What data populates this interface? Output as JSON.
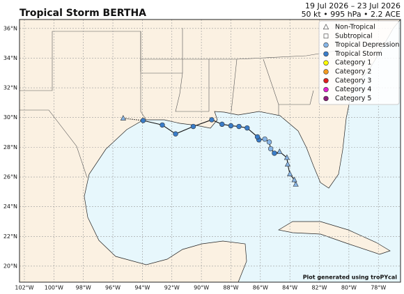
{
  "chart_data": {
    "type": "track",
    "title": "Tropical Storm BERTHA",
    "subtitle_lines": [
      "19 Jul 2026 – 23 Jul 2026",
      "50 kt • 995 hPa • 2.2 ACE"
    ],
    "credit": "Plot generated using troPYcal",
    "xlim": [
      -102.33,
      -76.5
    ],
    "ylim": [
      18.92,
      36.6
    ],
    "xticks": [
      {
        "value": -102,
        "label": "102°W"
      },
      {
        "value": -100,
        "label": "100°W"
      },
      {
        "value": -98,
        "label": "98°W"
      },
      {
        "value": -96,
        "label": "96°W"
      },
      {
        "value": -94,
        "label": "94°W"
      },
      {
        "value": -92,
        "label": "92°W"
      },
      {
        "value": -90,
        "label": "90°W"
      },
      {
        "value": -88,
        "label": "88°W"
      },
      {
        "value": -86,
        "label": "86°W"
      },
      {
        "value": -84,
        "label": "84°W"
      },
      {
        "value": -82,
        "label": "82°W"
      },
      {
        "value": -80,
        "label": "80°W"
      },
      {
        "value": -78,
        "label": "78°W"
      }
    ],
    "yticks": [
      {
        "value": 20,
        "label": "20°N"
      },
      {
        "value": 22,
        "label": "22°N"
      },
      {
        "value": 24,
        "label": "24°N"
      },
      {
        "value": 26,
        "label": "26°N"
      },
      {
        "value": 28,
        "label": "28°N"
      },
      {
        "value": 30,
        "label": "30°N"
      },
      {
        "value": 32,
        "label": "32°N"
      },
      {
        "value": 34,
        "label": "34°N"
      },
      {
        "value": 36,
        "label": "36°N"
      }
    ],
    "grid": true,
    "legend": {
      "loc": "upper right",
      "items": [
        {
          "name": "Non-Tropical",
          "marker": "triangle",
          "color": "#ffffff"
        },
        {
          "name": "Subtropical",
          "marker": "square",
          "color": "#ffffff"
        },
        {
          "name": "Tropical Depression",
          "marker": "circle",
          "color": "#87b5e6"
        },
        {
          "name": "Tropical Storm",
          "marker": "circle",
          "color": "#3a7dc9"
        },
        {
          "name": "Category 1",
          "marker": "circle",
          "color": "#ffff00"
        },
        {
          "name": "Category 2",
          "marker": "circle",
          "color": "#f39a1f"
        },
        {
          "name": "Category 3",
          "marker": "circle",
          "color": "#dd1f1f"
        },
        {
          "name": "Category 4",
          "marker": "circle",
          "color": "#e21fd0"
        },
        {
          "name": "Category 5",
          "marker": "circle",
          "color": "#8b1a7a"
        }
      ]
    },
    "track": {
      "lon": [
        -83.6,
        -83.7,
        -84.0,
        -84.15,
        -84.2,
        -84.7,
        -85.05,
        -85.3,
        -85.4,
        -85.7,
        -86.1,
        -86.2,
        -86.9,
        -87.45,
        -88.0,
        -88.6,
        -89.3,
        -90.55,
        -91.75,
        -92.65,
        -93.95,
        -95.3
      ],
      "lat": [
        25.5,
        25.8,
        26.2,
        26.85,
        27.3,
        27.7,
        27.6,
        27.9,
        28.35,
        28.55,
        28.5,
        28.7,
        29.3,
        29.4,
        29.45,
        29.55,
        29.85,
        29.4,
        28.9,
        29.5,
        29.8,
        29.95
      ],
      "status": [
        "Non-Tropical",
        "Non-Tropical",
        "Non-Tropical",
        "Non-Tropical",
        "Non-Tropical",
        "Non-Tropical",
        "Tropical Storm",
        "Tropical Depression",
        "Tropical Depression",
        "Tropical Depression",
        "Tropical Storm",
        "Tropical Storm",
        "Tropical Storm",
        "Tropical Storm",
        "Tropical Storm",
        "Tropical Storm",
        "Tropical Storm",
        "Tropical Storm",
        "Tropical Storm",
        "Tropical Storm",
        "Tropical Storm",
        "Non-Tropical"
      ],
      "colors": [
        "#87b5e6",
        "#87b5e6",
        "#87b5e6",
        "#87b5e6",
        "#87b5e6",
        "#87b5e6",
        "#3a7dc9",
        "#87b5e6",
        "#87b5e6",
        "#87b5e6",
        "#3a7dc9",
        "#3a7dc9",
        "#3a7dc9",
        "#3a7dc9",
        "#3a7dc9",
        "#3a7dc9",
        "#3a7dc9",
        "#3a7dc9",
        "#3a7dc9",
        "#3a7dc9",
        "#3a7dc9",
        "#87b5e6"
      ]
    }
  }
}
